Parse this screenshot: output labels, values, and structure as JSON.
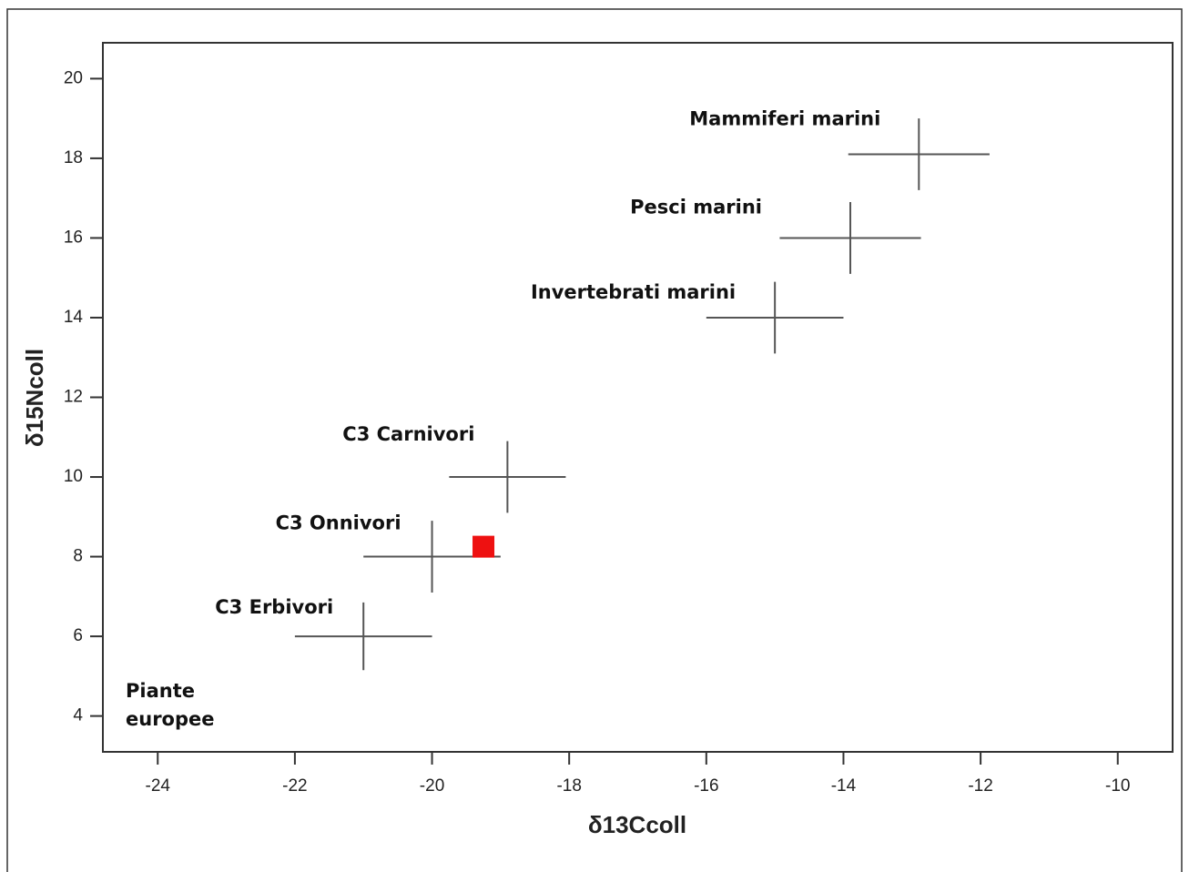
{
  "chart_data": {
    "type": "scatter",
    "x_label": "δ13Ccoll",
    "y_label": "δ15Ncoll",
    "xlim": [
      -24.8,
      -9.2
    ],
    "ylim": [
      3.1,
      20.9
    ],
    "xticks": [
      -24,
      -22,
      -20,
      -18,
      -16,
      -14,
      -12,
      -10
    ],
    "yticks": [
      4,
      6,
      8,
      10,
      12,
      14,
      16,
      18,
      20
    ],
    "color": "#555555",
    "points": [
      {
        "label": "Mammiferi marini",
        "x": -12.9,
        "y": 18.1,
        "xerr": 1.03,
        "yerr": 0.9
      },
      {
        "label": "Pesci marini",
        "x": -13.9,
        "y": 16.0,
        "xerr": 1.03,
        "yerr": 0.9
      },
      {
        "label": "Invertebrati marini",
        "x": -15.0,
        "y": 14.0,
        "xerr": 1.0,
        "yerr": 0.9
      },
      {
        "label": "C3 Carnivori",
        "x": -18.9,
        "y": 10.0,
        "xerr": 0.85,
        "yerr": 0.9
      },
      {
        "label": "C3 Onnivori",
        "x": -20.0,
        "y": 8.0,
        "xerr": 1.0,
        "yerr": 0.9
      },
      {
        "label": "C3 Erbivori",
        "x": -21.0,
        "y": 6.0,
        "xerr": 1.0,
        "yerr": 0.85
      }
    ],
    "highlight": {
      "x": -19.25,
      "y": 8.25,
      "color": "#ee1111"
    },
    "annotation": "Piante europee"
  }
}
